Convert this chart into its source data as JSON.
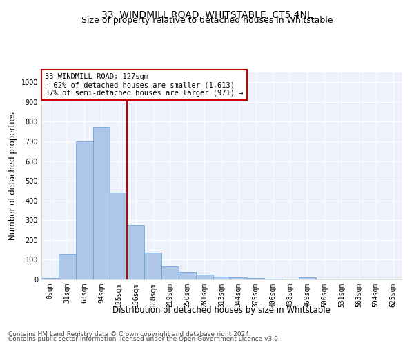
{
  "title": "33, WINDMILL ROAD, WHITSTABLE, CT5 4NL",
  "subtitle": "Size of property relative to detached houses in Whitstable",
  "xlabel": "Distribution of detached houses by size in Whitstable",
  "ylabel": "Number of detached properties",
  "bar_labels": [
    "0sqm",
    "31sqm",
    "63sqm",
    "94sqm",
    "125sqm",
    "156sqm",
    "188sqm",
    "219sqm",
    "250sqm",
    "281sqm",
    "313sqm",
    "344sqm",
    "375sqm",
    "406sqm",
    "438sqm",
    "469sqm",
    "500sqm",
    "531sqm",
    "563sqm",
    "594sqm",
    "625sqm"
  ],
  "bar_values": [
    8,
    128,
    700,
    775,
    440,
    275,
    135,
    68,
    40,
    25,
    15,
    12,
    8,
    5,
    0,
    10,
    0,
    0,
    0,
    0,
    0
  ],
  "bar_color": "#aec6e8",
  "bar_edge_color": "#5b9bd5",
  "vline_x": 4.5,
  "vline_color": "#cc0000",
  "annotation_text": "33 WINDMILL ROAD: 127sqm\n← 62% of detached houses are smaller (1,613)\n37% of semi-detached houses are larger (971) →",
  "annotation_box_color": "#ffffff",
  "annotation_box_edge_color": "#cc0000",
  "ylim": [
    0,
    1050
  ],
  "yticks": [
    0,
    100,
    200,
    300,
    400,
    500,
    600,
    700,
    800,
    900,
    1000
  ],
  "background_color": "#eef2fa",
  "grid_color": "#ffffff",
  "footer_line1": "Contains HM Land Registry data © Crown copyright and database right 2024.",
  "footer_line2": "Contains public sector information licensed under the Open Government Licence v3.0.",
  "title_fontsize": 10,
  "subtitle_fontsize": 9,
  "axis_label_fontsize": 8.5,
  "tick_fontsize": 7,
  "annotation_fontsize": 7.5,
  "footer_fontsize": 6.5
}
